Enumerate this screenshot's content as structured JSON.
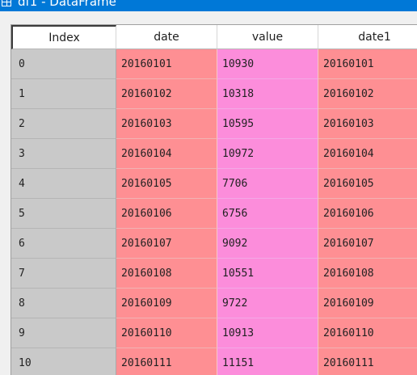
{
  "window": {
    "title": "df1 - DataFrame"
  },
  "table": {
    "columns": [
      "Index",
      "date",
      "value",
      "date1"
    ],
    "rows": [
      {
        "index": "0",
        "date": "20160101",
        "value": "10930",
        "date1": "20160101"
      },
      {
        "index": "1",
        "date": "20160102",
        "value": "10318",
        "date1": "20160102"
      },
      {
        "index": "2",
        "date": "20160103",
        "value": "10595",
        "date1": "20160103"
      },
      {
        "index": "3",
        "date": "20160104",
        "value": "10972",
        "date1": "20160104"
      },
      {
        "index": "4",
        "date": "20160105",
        "value": "7706",
        "date1": "20160105"
      },
      {
        "index": "5",
        "date": "20160106",
        "value": "6756",
        "date1": "20160106"
      },
      {
        "index": "6",
        "date": "20160107",
        "value": "9092",
        "date1": "20160107"
      },
      {
        "index": "7",
        "date": "20160108",
        "value": "10551",
        "date1": "20160108"
      },
      {
        "index": "8",
        "date": "20160109",
        "value": "9722",
        "date1": "20160109"
      },
      {
        "index": "9",
        "date": "20160110",
        "value": "10913",
        "date1": "20160110"
      },
      {
        "index": "10",
        "date": "20160111",
        "value": "11151",
        "date1": "20160111"
      }
    ]
  },
  "colors": {
    "titlebar": "#0078d7",
    "index_cell": "#c9c9c9",
    "date_cell": "#fe8f93",
    "value_cell": "#fc8ddb"
  },
  "icons": {
    "app": "table-icon"
  }
}
